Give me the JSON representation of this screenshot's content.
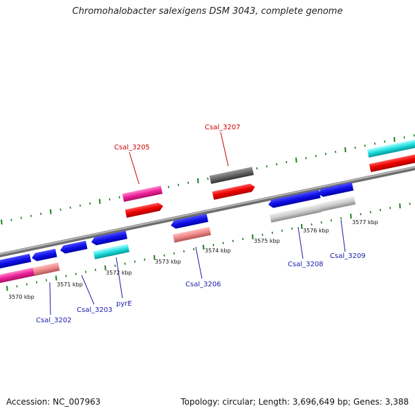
{
  "title": "Chromohalobacter salexigens DSM 3043, complete genome",
  "footer": {
    "accession": "Accession: NC_007963",
    "summary": "Topology: circular; Length: 3,696,649 bp; Genes: 3,388"
  },
  "colors": {
    "backbone": "#8c8c8c",
    "tick": "#1f7a1f",
    "label_forward": "#cc0000",
    "label_reverse": "#1a1aaa"
  },
  "kbp_labels": [
    "3570 kbp",
    "3571 kbp",
    "3572 kbp",
    "3573 kbp",
    "3574 kbp",
    "3575 kbp",
    "3576 kbp",
    "3577 kbp"
  ],
  "gene_labels": {
    "forward": [
      "Csal_3205",
      "Csal_3207"
    ],
    "reverse": [
      "Csal_3202",
      "Csal_3203",
      "pyrE",
      "Csal_3206",
      "Csal_3208",
      "Csal_3209"
    ]
  }
}
